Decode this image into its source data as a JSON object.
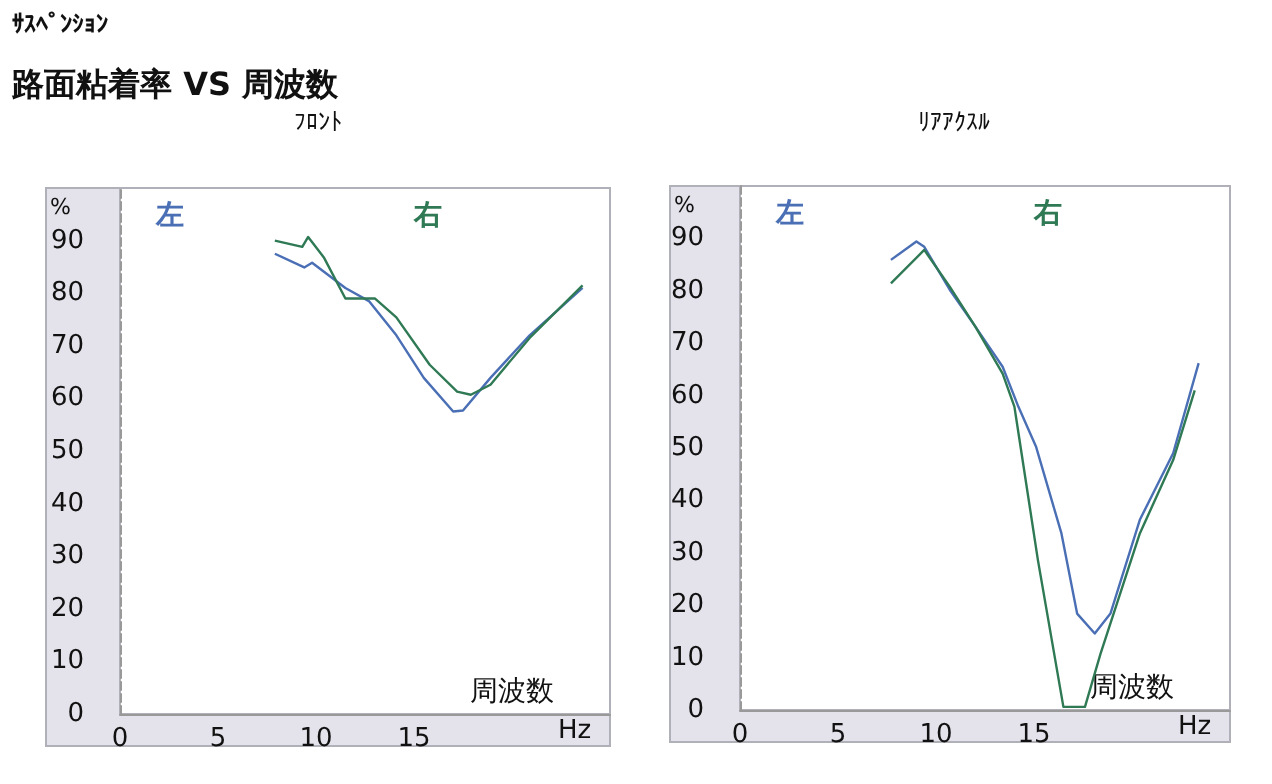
{
  "chart_data": [
    {
      "type": "line",
      "title": "ﾌﾛﾝﾄ",
      "xlabel": "Hz",
      "ylabel": "%",
      "annotations": [
        "ｻｽﾍﾟﾝｼｮﾝ",
        "路面粘着率 VS 周波数",
        "周波数"
      ],
      "xlim": [
        0,
        25
      ],
      "xticks": [
        0,
        5,
        10,
        15
      ],
      "ylim": [
        0,
        100
      ],
      "yticks": [
        0,
        10,
        20,
        30,
        40,
        50,
        60,
        70,
        80,
        90
      ],
      "grid": false,
      "legend": "top",
      "marker": "none",
      "line_style": "solid",
      "series": [
        {
          "name": "左",
          "color": "#4a6fb5",
          "x": [
            7.9,
            9.4,
            9.8,
            11.5,
            12.7,
            14.1,
            15.5,
            17,
            17.5,
            18.9,
            20.9,
            23.6
          ],
          "values": [
            87.5,
            84.9,
            85.8,
            81,
            78.5,
            72,
            63.9,
            57.5,
            57.7,
            63.9,
            72,
            81
          ]
        },
        {
          "name": "右",
          "color": "#2f7a55",
          "x": [
            7.9,
            9.3,
            9.6,
            10.4,
            11.5,
            13,
            14.1,
            15.8,
            17.2,
            17.9,
            18.9,
            20.9,
            23.6
          ],
          "values": [
            90,
            88.8,
            90.7,
            86.8,
            79,
            79,
            75.4,
            66.4,
            61.3,
            60.7,
            62.6,
            71.5,
            81.5
          ]
        }
      ]
    },
    {
      "type": "line",
      "title": "ﾘｱｱｸｽﾙ",
      "xlabel": "Hz",
      "ylabel": "%",
      "annotations": [
        "周波数"
      ],
      "xlim": [
        0,
        25
      ],
      "xticks": [
        0,
        5,
        10,
        15
      ],
      "ylim": [
        0,
        100
      ],
      "yticks": [
        0,
        10,
        20,
        30,
        40,
        50,
        60,
        70,
        80,
        90
      ],
      "grid": false,
      "legend": "top",
      "marker": "none",
      "line_style": "solid",
      "series": [
        {
          "name": "左",
          "color": "#4a6fb5",
          "x": [
            7.7,
            9.0,
            9.4,
            10.7,
            12,
            13.4,
            14.2,
            15.1,
            16.4,
            17.2,
            18.1,
            18.9,
            20.4,
            22.1,
            23.4
          ],
          "values": [
            85.9,
            89.4,
            88.4,
            80.2,
            73.2,
            65.5,
            57.9,
            50.3,
            33.7,
            18.4,
            14.6,
            18.4,
            36.3,
            49,
            66.2
          ]
        },
        {
          "name": "右",
          "color": "#2f7a55",
          "x": [
            7.7,
            9.4,
            10.7,
            12,
            13.4,
            14,
            15.2,
            16.5,
            17.6,
            18.4,
            20.4,
            22.1,
            23.2
          ],
          "values": [
            81.4,
            87.8,
            80.8,
            73.2,
            64.2,
            57.9,
            28.6,
            0.6,
            0.6,
            10.8,
            33.7,
            47.7,
            61
          ]
        }
      ]
    }
  ]
}
